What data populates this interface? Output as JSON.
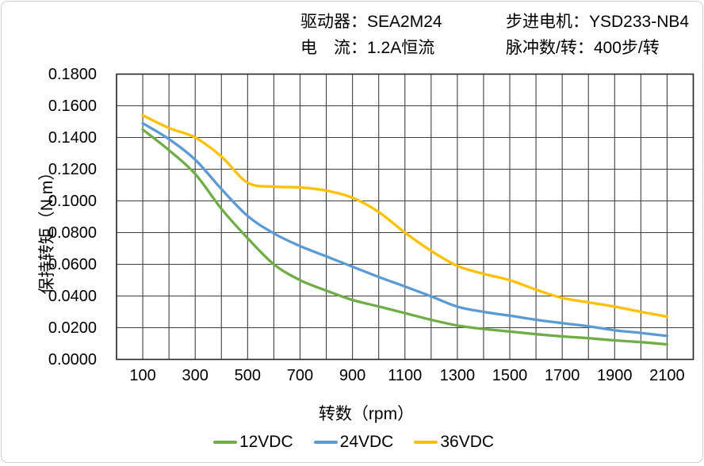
{
  "header": {
    "driver": "驱动器：SEA2M24",
    "current": "电　流：1.2A恒流",
    "motor": "步进电机：YSD233-NB4",
    "pulses": "脉冲数/转：400步/转"
  },
  "chart_data": {
    "type": "line",
    "title": "",
    "xlabel": "转数（rpm）",
    "ylabel": "保持转矩（N.m）",
    "xlim": [
      0,
      2200
    ],
    "ylim": [
      0,
      0.18
    ],
    "grid": true,
    "grid_x_step": 100,
    "grid_y_step": 0.02,
    "legend_position": "bottom",
    "x_tick_labels": [
      "100",
      "300",
      "500",
      "700",
      "900",
      "1100",
      "1300",
      "1500",
      "1700",
      "1900",
      "2100"
    ],
    "x_tick_values": [
      100,
      300,
      500,
      700,
      900,
      1100,
      1300,
      1500,
      1700,
      1900,
      2100
    ],
    "y_tick_labels": [
      "0.0000",
      "0.0200",
      "0.0400",
      "0.0600",
      "0.0800",
      "0.1000",
      "0.1200",
      "0.1400",
      "0.1600",
      "0.1800"
    ],
    "y_tick_values": [
      0.0,
      0.02,
      0.04,
      0.06,
      0.08,
      0.1,
      0.12,
      0.14,
      0.16,
      0.18
    ],
    "x": [
      100,
      200,
      300,
      400,
      500,
      600,
      700,
      800,
      900,
      1000,
      1100,
      1200,
      1300,
      1400,
      1500,
      1600,
      1700,
      1800,
      1900,
      2000,
      2100
    ],
    "series": [
      {
        "name": "12VDC",
        "color": "#70AD47",
        "values": [
          0.145,
          0.132,
          0.117,
          0.095,
          0.0765,
          0.06,
          0.05,
          0.0434,
          0.0375,
          0.0334,
          0.0292,
          0.025,
          0.0214,
          0.0192,
          0.0176,
          0.0159,
          0.0145,
          0.0134,
          0.012,
          0.0109,
          0.0095
        ]
      },
      {
        "name": "24VDC",
        "color": "#5B9BD5",
        "values": [
          0.149,
          0.139,
          0.126,
          0.1075,
          0.0905,
          0.0795,
          0.0715,
          0.065,
          0.0585,
          0.052,
          0.046,
          0.0398,
          0.0333,
          0.03,
          0.0276,
          0.025,
          0.0229,
          0.0209,
          0.0184,
          0.0167,
          0.0148
        ]
      },
      {
        "name": "36VDC",
        "color": "#FFC000",
        "values": [
          0.154,
          0.146,
          0.14,
          0.128,
          0.1115,
          0.109,
          0.1085,
          0.1065,
          0.102,
          0.093,
          0.08,
          0.0685,
          0.059,
          0.054,
          0.05,
          0.044,
          0.0388,
          0.036,
          0.0333,
          0.03,
          0.027
        ]
      }
    ],
    "grid_color": "#404040",
    "border_color": "#262626"
  }
}
